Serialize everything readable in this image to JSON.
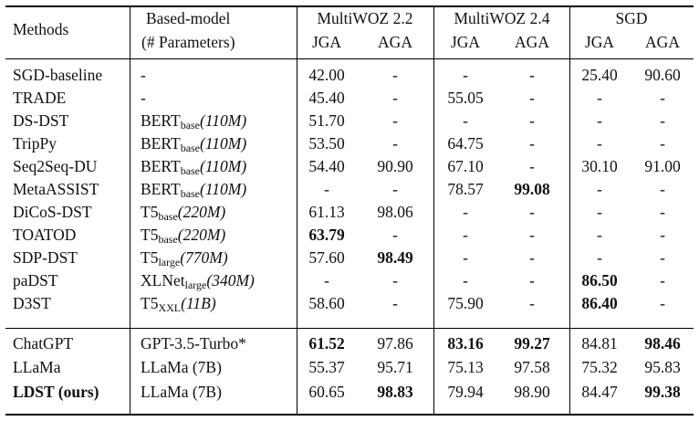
{
  "header": {
    "methods": "Methods",
    "based_model": "Based-model",
    "params": "(# Parameters)",
    "groups": [
      "MultiWOZ 2.2",
      "MultiWOZ 2.4",
      "SGD"
    ],
    "sub": [
      "JGA",
      "AGA",
      "JGA",
      "AGA",
      "JGA",
      "AGA"
    ]
  },
  "rows": [
    {
      "method": "SGD-baseline",
      "model": {
        "base": "-",
        "sub": "",
        "rest": ""
      },
      "values": [
        "42.00",
        "-",
        "-",
        "-",
        "25.40",
        "90.60"
      ],
      "bold": []
    },
    {
      "method": "TRADE",
      "model": {
        "base": "-",
        "sub": "",
        "rest": ""
      },
      "values": [
        "45.40",
        "-",
        "55.05",
        "-",
        "-",
        "-"
      ],
      "bold": []
    },
    {
      "method": "DS-DST",
      "model": {
        "base": "BERT",
        "sub": "base",
        "rest": "(110M)"
      },
      "values": [
        "51.70",
        "-",
        "-",
        "-",
        "-",
        "-"
      ],
      "bold": []
    },
    {
      "method": "TripPy",
      "model": {
        "base": "BERT",
        "sub": "base",
        "rest": "(110M)"
      },
      "values": [
        "53.50",
        "-",
        "64.75",
        "-",
        "-",
        "-"
      ],
      "bold": []
    },
    {
      "method": "Seq2Seq-DU",
      "model": {
        "base": "BERT",
        "sub": "base",
        "rest": "(110M)"
      },
      "values": [
        "54.40",
        "90.90",
        "67.10",
        "-",
        "30.10",
        "91.00"
      ],
      "bold": []
    },
    {
      "method": "MetaASSIST",
      "model": {
        "base": "BERT",
        "sub": "base",
        "rest": "(110M)"
      },
      "values": [
        "-",
        "-",
        "78.57",
        "99.08",
        "-",
        "-"
      ],
      "bold": [
        3
      ]
    },
    {
      "method": "DiCoS-DST",
      "model": {
        "base": "T5",
        "sub": "base",
        "rest": "(220M)"
      },
      "values": [
        "61.13",
        "98.06",
        "-",
        "-",
        "-",
        "-"
      ],
      "bold": []
    },
    {
      "method": "TOATOD",
      "model": {
        "base": "T5",
        "sub": "base",
        "rest": "(220M)"
      },
      "values": [
        "63.79",
        "-",
        "-",
        "-",
        "-",
        "-"
      ],
      "bold": [
        0
      ]
    },
    {
      "method": "SDP-DST",
      "model": {
        "base": "T5",
        "sub": "large",
        "rest": "(770M)"
      },
      "values": [
        "57.60",
        "98.49",
        "-",
        "-",
        "-",
        "-"
      ],
      "bold": [
        1
      ]
    },
    {
      "method": "paDST",
      "model": {
        "base": "XLNet",
        "sub": "large",
        "rest": "(340M)"
      },
      "values": [
        "-",
        "-",
        "-",
        "-",
        "86.50",
        "-"
      ],
      "bold": [
        4
      ]
    },
    {
      "method": "D3ST",
      "model": {
        "base": "T5",
        "sub": "XXL",
        "rest": "(11B)"
      },
      "values": [
        "58.60",
        "-",
        "75.90",
        "-",
        "86.40",
        "-"
      ],
      "bold": [
        4
      ]
    },
    {
      "method": "ChatGPT",
      "model": {
        "base": "GPT-3.5-Turbo*",
        "sub": "",
        "rest": ""
      },
      "values": [
        "61.52",
        "97.86",
        "83.16",
        "99.27",
        "84.81",
        "98.46"
      ],
      "bold": [
        0,
        2,
        3,
        5
      ]
    },
    {
      "method": "LLaMa",
      "model": {
        "base": "LLaMa (7B)",
        "sub": "",
        "rest": ""
      },
      "values": [
        "55.37",
        "95.71",
        "75.13",
        "97.58",
        "75.32",
        "95.83"
      ],
      "bold": []
    },
    {
      "method": "LDST (ours)",
      "model": {
        "base": "LLaMa (7B)",
        "sub": "",
        "rest": ""
      },
      "values": [
        "60.65",
        "98.83",
        "79.94",
        "98.90",
        "84.47",
        "99.38"
      ],
      "bold": [
        1,
        5
      ],
      "method_bold": true
    }
  ]
}
